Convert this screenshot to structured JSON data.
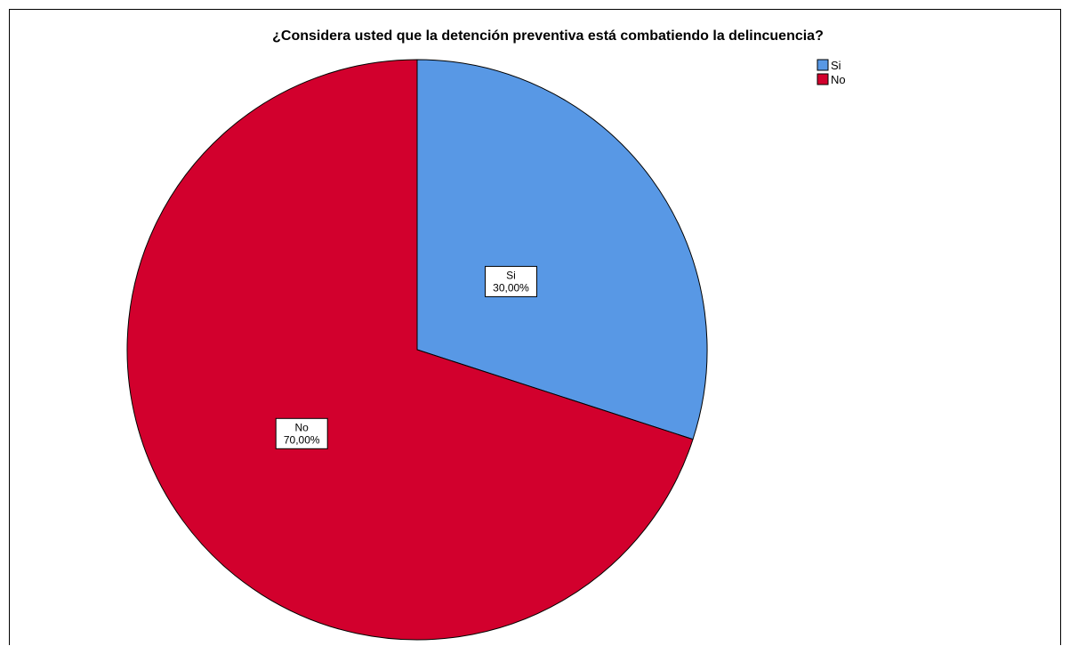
{
  "chart_data": {
    "type": "pie",
    "title": "¿Considera usted que la detención preventiva está combatiendo la delincuencia?",
    "categories": [
      "Si",
      "No"
    ],
    "values": [
      30.0,
      70.0
    ],
    "value_labels": [
      "30,00%",
      "70,00%"
    ],
    "colors": [
      "#5898e5",
      "#d2002d"
    ],
    "start_angle_deg": 0,
    "direction": "clockwise",
    "legend": {
      "position": "top-right",
      "entries": [
        "Si",
        "No"
      ]
    }
  }
}
